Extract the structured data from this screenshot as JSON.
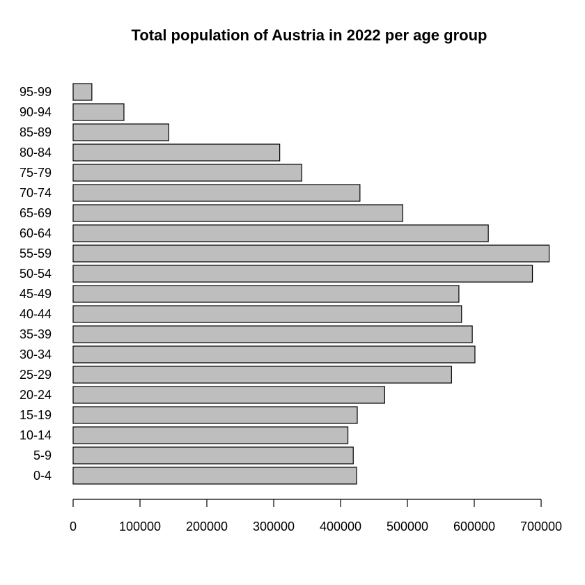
{
  "chart_data": {
    "type": "bar",
    "orientation": "horizontal",
    "title": "Total population of Austria in 2022 per age group",
    "xlabel": "",
    "ylabel": "",
    "categories": [
      "0-4",
      "5-9",
      "10-14",
      "15-19",
      "20-24",
      "25-29",
      "30-34",
      "35-39",
      "40-44",
      "45-49",
      "50-54",
      "55-59",
      "60-64",
      "65-69",
      "70-74",
      "75-79",
      "80-84",
      "85-89",
      "90-94",
      "95-99"
    ],
    "values": [
      424000,
      419000,
      411000,
      425000,
      466000,
      566000,
      601000,
      597000,
      581000,
      577000,
      687000,
      712000,
      621000,
      493000,
      429000,
      342000,
      309000,
      143000,
      76000,
      28000
    ],
    "xlim": [
      0,
      700000
    ],
    "xticks": [
      0,
      100000,
      200000,
      300000,
      400000,
      500000,
      600000,
      700000
    ],
    "xtick_labels": [
      "0",
      "100000",
      "200000",
      "300000",
      "400000",
      "500000",
      "600000",
      "700000"
    ],
    "bar_fill": "#bebebe",
    "bar_stroke": "#000000",
    "grid": false,
    "legend": "none"
  }
}
